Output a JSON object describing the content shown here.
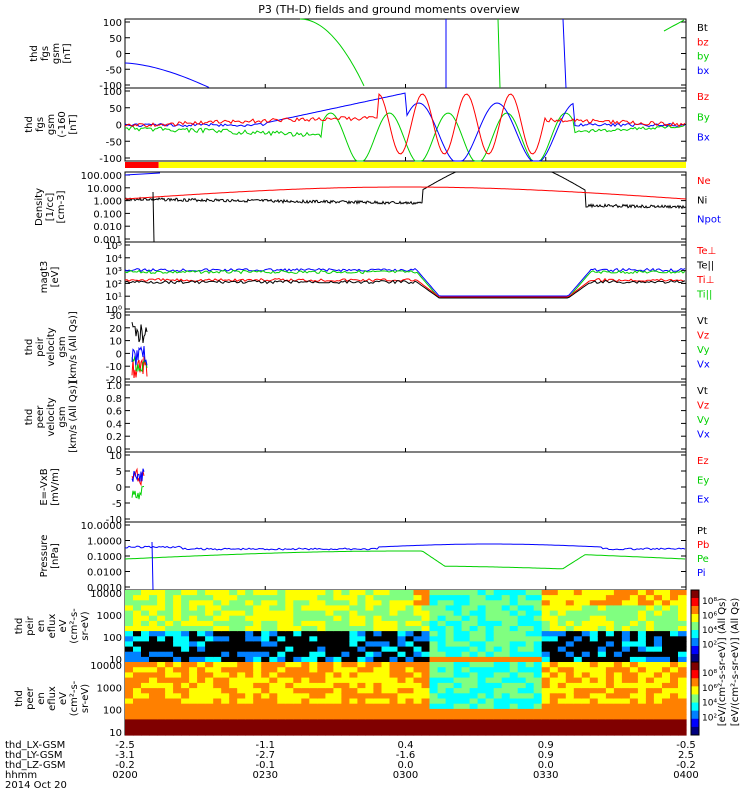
{
  "title": "P3 (TH-D) fields and ground moments overview",
  "colors": {
    "black": "#000000",
    "red": "#ff0000",
    "green": "#00d000",
    "blue": "#0000ff",
    "yellow": "#ffff00"
  },
  "chart_data": [
    {
      "type": "line",
      "panel": "fgs",
      "ylabel": [
        "thd",
        "fgs",
        "gsm",
        "[nT]"
      ],
      "ylim": [
        -100,
        100
      ],
      "yticks": [
        "100",
        "50",
        "0",
        "-50",
        "-100"
      ],
      "legend": [
        {
          "label": "Bt",
          "color": "black"
        },
        {
          "label": "bz",
          "color": "red"
        },
        {
          "label": "by",
          "color": "green"
        },
        {
          "label": "bx",
          "color": "blue"
        }
      ]
    },
    {
      "type": "line",
      "panel": "fgs_clipped",
      "ylabel": [
        "thd",
        "fgs",
        "gsm",
        "(-160",
        "[nT]"
      ],
      "ylim": [
        -120,
        120
      ],
      "yticks": [
        "100",
        "50",
        "0",
        "-50",
        "-100"
      ],
      "legend": [
        {
          "label": "Bz",
          "color": "red"
        },
        {
          "label": "By",
          "color": "green"
        },
        {
          "label": "Bx",
          "color": "blue"
        }
      ]
    },
    {
      "type": "line",
      "panel": "density",
      "ylabel": [
        "Density",
        "[1/cc]",
        "[cm-3]"
      ],
      "yscale": "log",
      "yticks": [
        "100.000",
        "10.000",
        "1.000",
        "0.100",
        "0.010",
        "0.001"
      ],
      "legend": [
        {
          "label": "Ne",
          "color": "red"
        },
        {
          "label": "Ni",
          "color": "black"
        },
        {
          "label": "Npot",
          "color": "blue"
        }
      ]
    },
    {
      "type": "line",
      "panel": "temperature",
      "ylabel": [
        "magt3",
        "[eV]"
      ],
      "yscale": "log",
      "yticks": [
        "10⁵",
        "10⁴",
        "10³",
        "10²",
        "10¹",
        "10⁰"
      ],
      "legend": [
        {
          "label": "Te⊥",
          "color": "red"
        },
        {
          "label": "Te||",
          "color": "black"
        },
        {
          "label": "Ti⊥",
          "color": "red"
        },
        {
          "label": "Ti||",
          "color": "green"
        }
      ]
    },
    {
      "type": "line",
      "panel": "peir_velocity",
      "ylabel": [
        "thd",
        "peir",
        "velocity",
        "gsm",
        "[km/s (All Qs)]"
      ],
      "ylim": [
        -20,
        30
      ],
      "yticks": [
        "30",
        "20",
        "10",
        "0",
        "-10",
        "-20"
      ],
      "legend": [
        {
          "label": "Vt",
          "color": "black"
        },
        {
          "label": "Vz",
          "color": "red"
        },
        {
          "label": "Vy",
          "color": "green"
        },
        {
          "label": "Vx",
          "color": "blue"
        }
      ]
    },
    {
      "type": "line",
      "panel": "peer_velocity",
      "ylabel": [
        "thd",
        "peer",
        "velocity",
        "gsm",
        "[km/s (All Qs)]"
      ],
      "ylim": [
        0,
        1
      ],
      "yticks": [
        "1.0",
        "0.8",
        "0.6",
        "0.4",
        "0.2",
        "0.0"
      ],
      "legend": [
        {
          "label": "Vt",
          "color": "black"
        },
        {
          "label": "Vz",
          "color": "red"
        },
        {
          "label": "Vy",
          "color": "green"
        },
        {
          "label": "Vx",
          "color": "blue"
        }
      ]
    },
    {
      "type": "line",
      "panel": "efield",
      "ylabel": [
        "E=-VxB",
        "[mV/m]"
      ],
      "ylim": [
        -10,
        10
      ],
      "yticks": [
        "10",
        "5",
        "0",
        "-5",
        "-10"
      ],
      "legend": [
        {
          "label": "Ez",
          "color": "red"
        },
        {
          "label": "Ey",
          "color": "green"
        },
        {
          "label": "Ex",
          "color": "blue"
        }
      ]
    },
    {
      "type": "line",
      "panel": "pressure",
      "ylabel": [
        "Pressure",
        "[nPa]"
      ],
      "yscale": "log",
      "yticks": [
        "10.0000",
        "1.0000",
        "0.1000",
        "0.0100",
        "0.0010"
      ],
      "legend": [
        {
          "label": "Pt",
          "color": "black"
        },
        {
          "label": "Pb",
          "color": "red"
        },
        {
          "label": "Pe",
          "color": "green"
        },
        {
          "label": "Pi",
          "color": "blue"
        }
      ]
    },
    {
      "type": "heatmap",
      "panel": "peir_spec",
      "ylabel": [
        "thd",
        "peir",
        "en",
        "eflux",
        "eV",
        "(cm²-s-",
        "sr-eV)"
      ],
      "yscale": "log",
      "yticks": [
        "10000",
        "1000",
        "100",
        "10"
      ]
    },
    {
      "type": "heatmap",
      "panel": "peer_spec",
      "ylabel": [
        "thd",
        "peer",
        "en",
        "eflux",
        "eV",
        "(cm²-s-",
        "sr-eV)"
      ],
      "yscale": "log",
      "yticks": [
        "10000",
        "1000",
        "100",
        "10"
      ]
    }
  ],
  "colorbar": {
    "label": "[eV/(cm²-s-sr-eV)] (All Qs)",
    "label_repeat": "[eV/(cm²-s-sr-eV)] (All Qs)",
    "ticks_upper": [
      "10⁸",
      "10⁶",
      "10⁴",
      "10²"
    ],
    "ticks_lower": [
      "10⁸",
      "10⁶",
      "10⁴",
      "10²"
    ]
  },
  "x_axis": {
    "row_labels": [
      "thd_LX-GSM",
      "thd_LY-GSM",
      "thd_LZ-GSM",
      "hhmm",
      "2014 Oct 20"
    ],
    "columns": [
      {
        "lx": "-2.5",
        "ly": "-3.1",
        "lz": "-0.2",
        "hhmm": "0200"
      },
      {
        "lx": "-1.1",
        "ly": "-2.7",
        "lz": "-0.1",
        "hhmm": "0230"
      },
      {
        "lx": "0.4",
        "ly": "-1.6",
        "lz": "0.0",
        "hhmm": "0300"
      },
      {
        "lx": "0.9",
        "ly": "0.9",
        "lz": "0.0",
        "hhmm": "0330"
      },
      {
        "lx": "-0.5",
        "ly": "2.5",
        "lz": "-0.2",
        "hhmm": "0400"
      }
    ]
  },
  "region_bar": {
    "colors": [
      "red",
      "yellow"
    ],
    "split_fraction": 0.06
  }
}
